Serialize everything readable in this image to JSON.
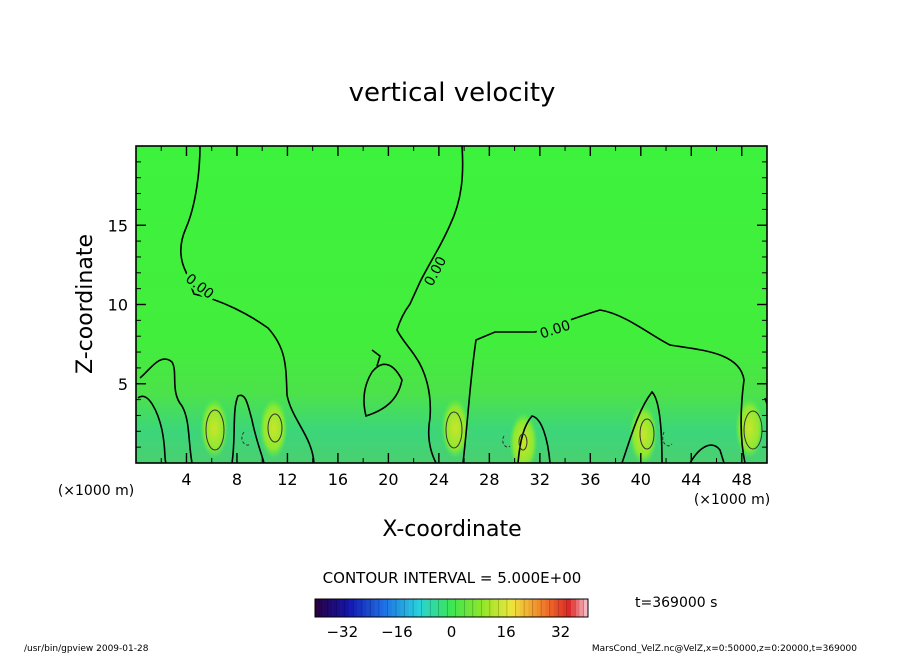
{
  "chart_data": {
    "type": "heatmap",
    "title": "vertical velocity",
    "xlabel": "X-coordinate",
    "ylabel": "Z-coordinate",
    "x_unit_left": "(×1000 m)",
    "x_unit_right": "(×1000 m)",
    "xlim": [
      0,
      50
    ],
    "ylim": [
      0,
      20
    ],
    "x_ticks": [
      4,
      8,
      12,
      16,
      20,
      24,
      28,
      32,
      36,
      40,
      44,
      48
    ],
    "x_tick_labels": [
      "4",
      "8",
      "12",
      "16",
      "20",
      "24",
      "28",
      "32",
      "36",
      "40",
      "44",
      "48"
    ],
    "y_ticks": [
      5,
      10,
      15
    ],
    "y_tick_labels": [
      "5",
      "10",
      "15"
    ],
    "contour_label": "0.00",
    "contour_interval_text": "CONTOUR INTERVAL = 5.000E+00",
    "time_text": "t=369000 s",
    "colorbar": {
      "min": -40,
      "max": 40,
      "ticks": [
        -32,
        -16,
        0,
        16,
        32
      ],
      "tick_labels": [
        "−32",
        "−16",
        "0",
        "16",
        "32"
      ]
    },
    "updraft_cells": [
      {
        "x": 6.2,
        "z": 2.2
      },
      {
        "x": 10.9,
        "z": 2.2
      },
      {
        "x": 25.3,
        "z": 2.2
      },
      {
        "x": 30.7,
        "z": 1.3
      },
      {
        "x": 40.2,
        "z": 1.8
      },
      {
        "x": 48.6,
        "z": 2.2
      }
    ]
  },
  "footer": {
    "left": "/usr/bin/gpview  2009-01-28",
    "right": "MarsCond_VelZ.nc@VelZ,x=0:50000,z=0:20000,t=369000"
  }
}
